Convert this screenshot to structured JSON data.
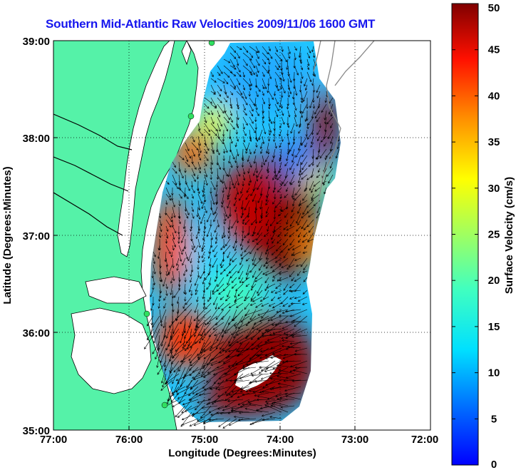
{
  "title": "Southern Mid-Atlantic Raw Velocities 2009/11/06 1600 GMT",
  "map": {
    "xlabel": "Longitude (Degrees:Minutes)",
    "ylabel": "Latitude (Degrees:Minutes)",
    "x_ticks": [
      "77:00",
      "76:00",
      "75:00",
      "74:00",
      "73:00",
      "72:00"
    ],
    "y_ticks": [
      "39:00",
      "38:00",
      "37:00",
      "36:00",
      "35:00"
    ],
    "lon_range": [
      -77,
      -72
    ],
    "lat_range": [
      35,
      39
    ],
    "grid": "dotted",
    "land_color": "#55f2a8",
    "water_color": "#ffffff"
  },
  "colorbar": {
    "label": "Surface Velocity (cm/s)",
    "range": [
      0,
      50
    ],
    "ticks": [
      "50",
      "45",
      "40",
      "35",
      "30",
      "25",
      "20",
      "15",
      "10",
      "5",
      "0"
    ],
    "colormap": "jet"
  },
  "chart_data": {
    "type": "heatmap",
    "title": "Southern Mid-Atlantic Raw Velocities 2009/11/06 1600 GMT",
    "xlabel": "Longitude (Degrees:Minutes)",
    "ylabel": "Latitude (Degrees:Minutes)",
    "xlim": [
      -77,
      -72
    ],
    "ylim": [
      35,
      39
    ],
    "colorbar_label": "Surface Velocity (cm/s)",
    "colorbar_range": [
      0,
      50
    ],
    "regions": [
      {
        "lon": -74.4,
        "lat": 37.3,
        "speed": 48
      },
      {
        "lon": -74.2,
        "lat": 35.7,
        "speed": 50
      },
      {
        "lon": -73.3,
        "lat": 38.2,
        "speed": 47
      },
      {
        "lon": -74.6,
        "lat": 38.6,
        "speed": 10
      },
      {
        "lon": -74.9,
        "lat": 36.4,
        "speed": 12
      },
      {
        "lon": -75.5,
        "lat": 36.9,
        "speed": 38
      },
      {
        "lon": -75.4,
        "lat": 38.0,
        "speed": 35
      },
      {
        "lon": -73.7,
        "lat": 37.9,
        "speed": 8
      },
      {
        "lon": -75.6,
        "lat": 35.8,
        "speed": 40
      }
    ]
  }
}
